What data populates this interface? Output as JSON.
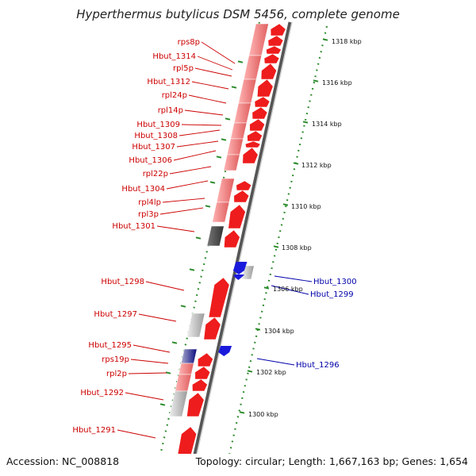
{
  "title": "Hyperthermus butylicus DSM 5456, complete genome",
  "footer": {
    "accession": "Accession: NC_008818",
    "summary": "Topology: circular; Length: 1,667,163 bp; Genes: 1,654"
  },
  "colors": {
    "forward_gene": "#ee1c1c",
    "reverse_gene": "#1a1adc",
    "backbone": "#888888",
    "scale_ticks": "#2a8a2a",
    "label_red": "#cc0000",
    "label_blue": "#0000aa"
  },
  "scale_ticks": [
    "1318 kbp",
    "1316 kbp",
    "1314 kbp",
    "1312 kbp",
    "1310 kbp",
    "1308 kbp",
    "1306 kbp",
    "1304 kbp",
    "1302 kbp",
    "1300 kbp"
  ],
  "left_genes": [
    "rps8p",
    "Hbut_1314",
    "rpl5p",
    "Hbut_1312",
    "rpl24p",
    "rpl14p",
    "Hbut_1309",
    "Hbut_1308",
    "Hbut_1307",
    "Hbut_1306",
    "rpl22p",
    "Hbut_1304",
    "rpl4lp",
    "rpl3p",
    "Hbut_1301",
    "Hbut_1298",
    "Hbut_1297",
    "Hbut_1295",
    "rps19p",
    "rpl2p",
    "Hbut_1292",
    "Hbut_1291"
  ],
  "right_genes": [
    "Hbut_1300",
    "Hbut_1299",
    "Hbut_1296"
  ]
}
